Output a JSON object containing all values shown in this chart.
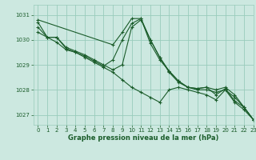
{
  "xlabel": "Graphe pression niveau de la mer (hPa)",
  "xlim": [
    -0.5,
    23
  ],
  "ylim": [
    1026.6,
    1031.4
  ],
  "yticks": [
    1027,
    1028,
    1029,
    1030,
    1031
  ],
  "xticks": [
    0,
    1,
    2,
    3,
    4,
    5,
    6,
    7,
    8,
    9,
    10,
    11,
    12,
    13,
    14,
    15,
    16,
    17,
    18,
    19,
    20,
    21,
    22,
    23
  ],
  "bg_color": "#cce8e0",
  "grid_color": "#99ccbb",
  "line_color": "#1a5c2a",
  "series": [
    [
      1030.7,
      1030.1,
      1029.9,
      1029.6,
      1029.5,
      1029.3,
      1029.1,
      1028.9,
      1028.7,
      1028.4,
      1028.1,
      1027.9,
      1027.7,
      1027.5,
      1028.0,
      1028.1,
      1028.0,
      1027.9,
      1027.8,
      1027.6,
      1028.0,
      1027.5,
      1027.2,
      1026.8
    ],
    [
      1030.5,
      1030.1,
      1030.1,
      1029.7,
      1029.55,
      1029.4,
      1029.2,
      1029.0,
      1028.8,
      1029.0,
      1030.5,
      1030.8,
      1030.0,
      1029.3,
      1028.7,
      1028.3,
      1028.1,
      1028.05,
      1028.1,
      1028.0,
      1028.1,
      1027.8,
      1027.3,
      1026.8
    ],
    [
      1030.3,
      1030.1,
      1030.1,
      1029.65,
      1029.5,
      1029.35,
      1029.15,
      1028.95,
      1029.2,
      1030.0,
      1030.65,
      1030.85,
      1029.85,
      1029.2,
      1028.75,
      1028.35,
      1028.1,
      1028.0,
      1028.0,
      1027.9,
      1028.0,
      1027.7,
      1027.3,
      1026.8
    ],
    [
      1030.8,
      null,
      null,
      null,
      null,
      null,
      null,
      null,
      1029.8,
      1030.3,
      1030.85,
      1030.85,
      1030.0,
      1029.3,
      1028.75,
      1028.35,
      1028.1,
      1028.05,
      1028.1,
      1027.8,
      1028.05,
      1027.55,
      1027.3,
      1026.8
    ]
  ]
}
